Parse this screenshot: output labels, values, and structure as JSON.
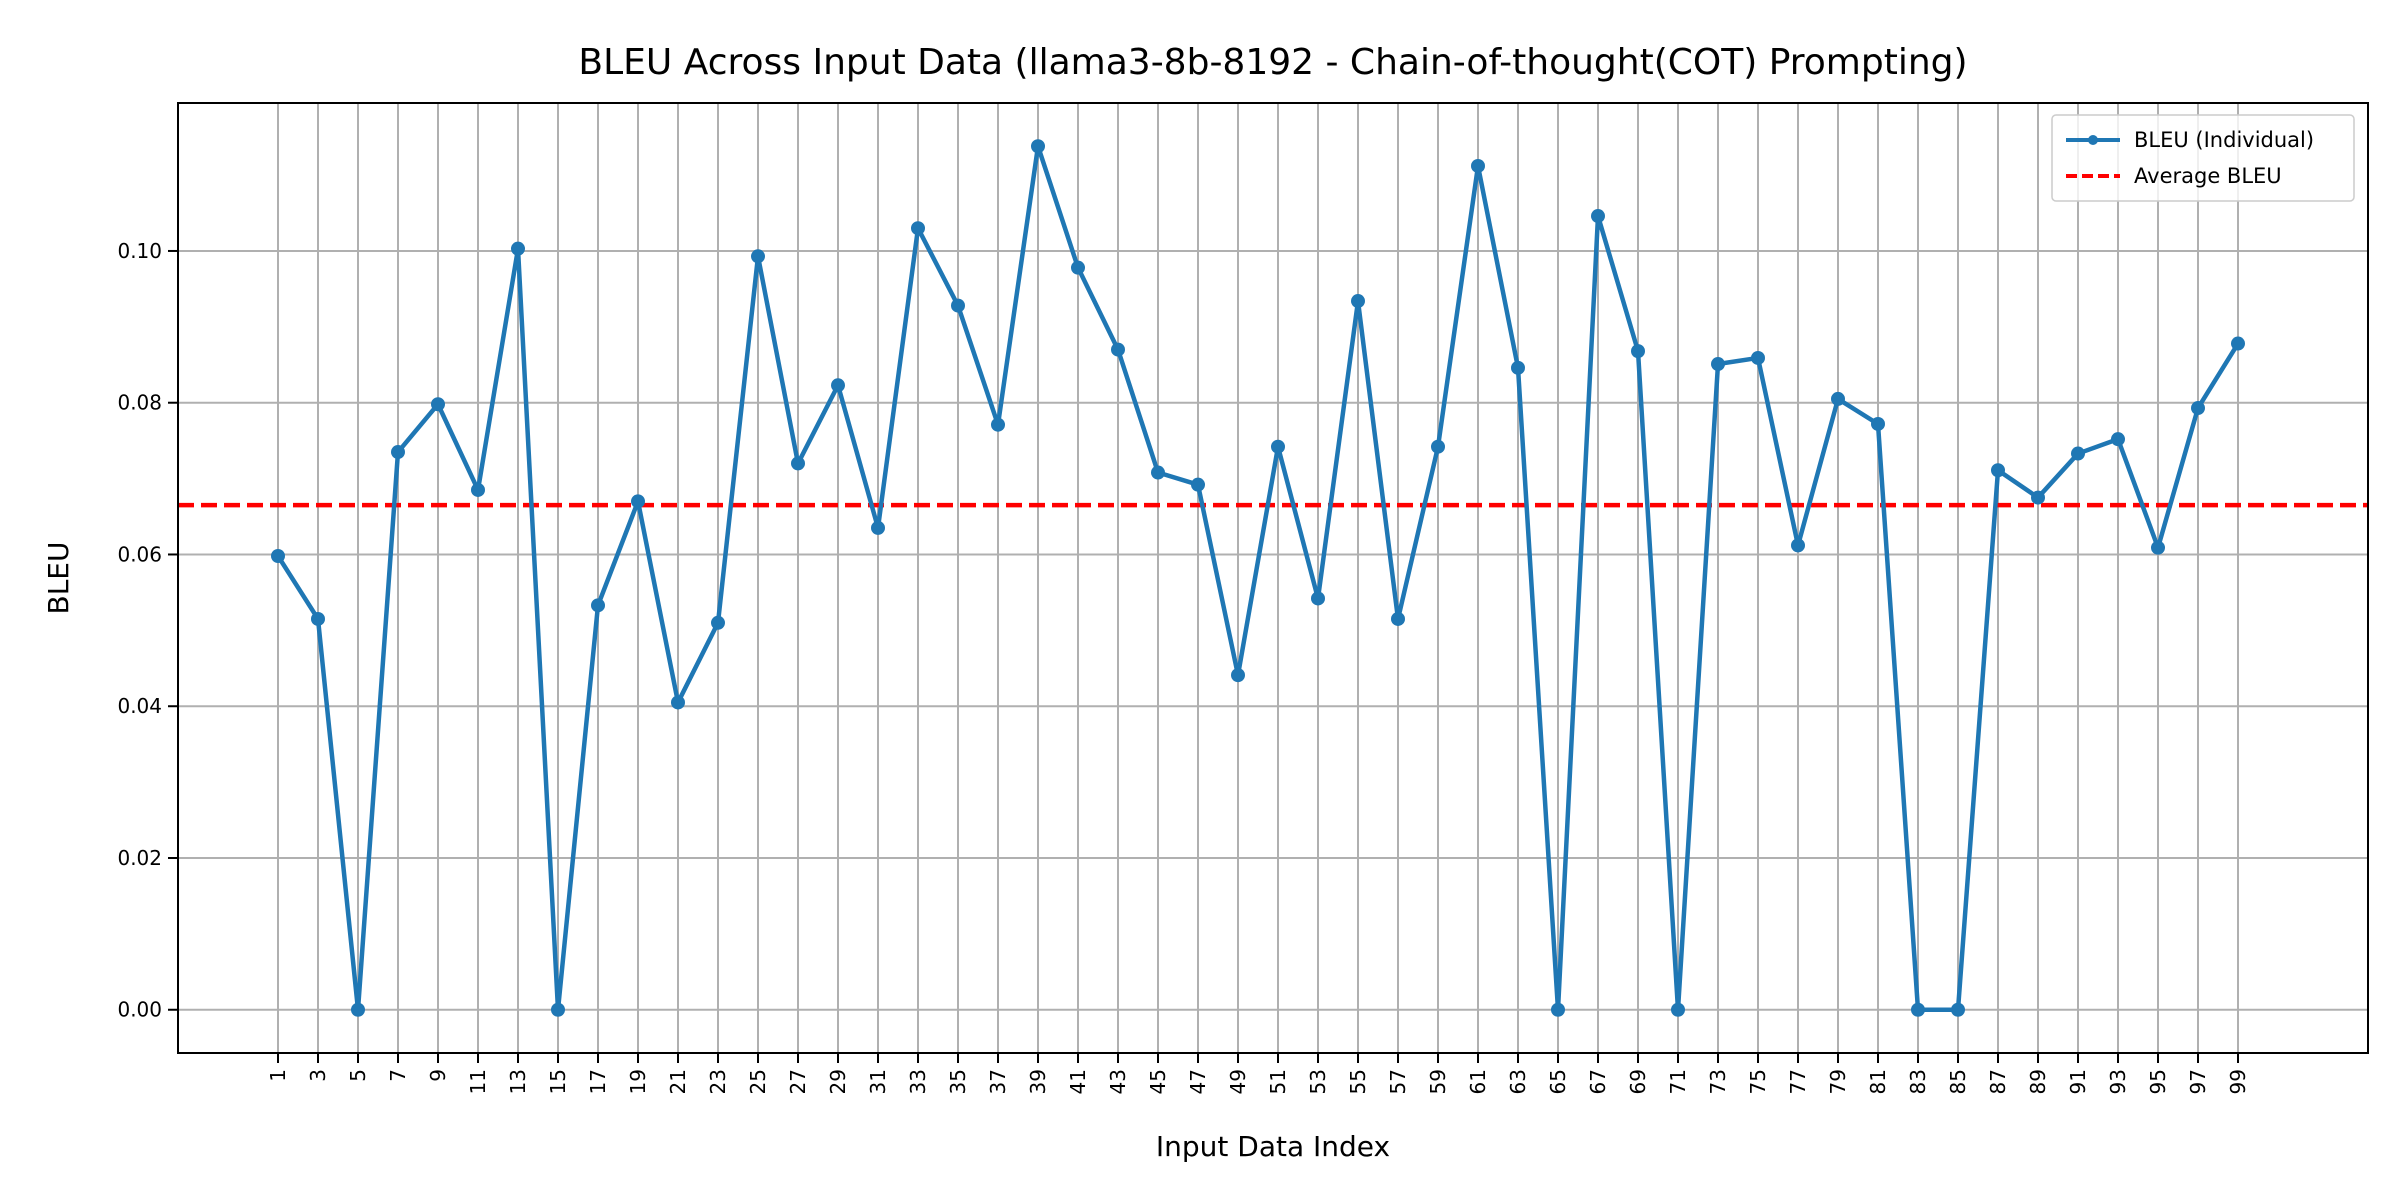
{
  "chart_data": {
    "type": "line",
    "title": "BLEU Across Input Data (llama3-8b-8192 - Chain-of-thought(COT) Prompting)",
    "xlabel": "Input Data Index",
    "ylabel": "BLEU",
    "x": [
      1,
      3,
      5,
      7,
      9,
      11,
      13,
      15,
      17,
      19,
      21,
      23,
      25,
      27,
      29,
      31,
      33,
      35,
      37,
      39,
      41,
      43,
      45,
      47,
      49,
      51,
      53,
      55,
      57,
      59,
      61,
      63,
      65,
      67,
      69,
      71,
      73,
      75,
      77,
      79,
      81,
      83,
      85,
      87,
      89,
      91,
      93,
      95,
      97,
      99
    ],
    "series": [
      {
        "name": "BLEU (Individual)",
        "color": "#1f77b4",
        "values": [
          0.0598,
          0.0515,
          0.0,
          0.0735,
          0.0798,
          0.0685,
          0.1003,
          0.0,
          0.0533,
          0.067,
          0.0405,
          0.051,
          0.0993,
          0.072,
          0.0823,
          0.0635,
          0.103,
          0.0928,
          0.0771,
          0.1138,
          0.0978,
          0.087,
          0.0708,
          0.0692,
          0.0441,
          0.0742,
          0.0542,
          0.0934,
          0.0515,
          0.0742,
          0.1112,
          0.0846,
          0.0,
          0.1046,
          0.0868,
          0.0,
          0.0851,
          0.0859,
          0.0612,
          0.0805,
          0.0772,
          0.0,
          0.0,
          0.0711,
          0.0675,
          0.0733,
          0.0752,
          0.0609,
          0.0793,
          0.0878
        ]
      },
      {
        "name": "Average BLEU",
        "color": "#ff0000",
        "value": 0.0665
      }
    ],
    "xticks": [
      "1",
      "3",
      "5",
      "7",
      "9",
      "11",
      "13",
      "15",
      "17",
      "19",
      "21",
      "23",
      "25",
      "27",
      "29",
      "31",
      "33",
      "35",
      "37",
      "39",
      "41",
      "43",
      "45",
      "47",
      "49",
      "51",
      "53",
      "55",
      "57",
      "59",
      "61",
      "63",
      "65",
      "67",
      "69",
      "71",
      "73",
      "75",
      "77",
      "79",
      "81",
      "83",
      "85",
      "87",
      "89",
      "91",
      "93",
      "95",
      "97",
      "99"
    ],
    "yticks": [
      "0.00",
      "0.02",
      "0.04",
      "0.06",
      "0.08",
      "0.10"
    ],
    "xlim": [
      -4,
      105.5
    ],
    "ylim": [
      -0.0057,
      0.1195
    ],
    "grid": true,
    "legend_position": "top-right"
  }
}
